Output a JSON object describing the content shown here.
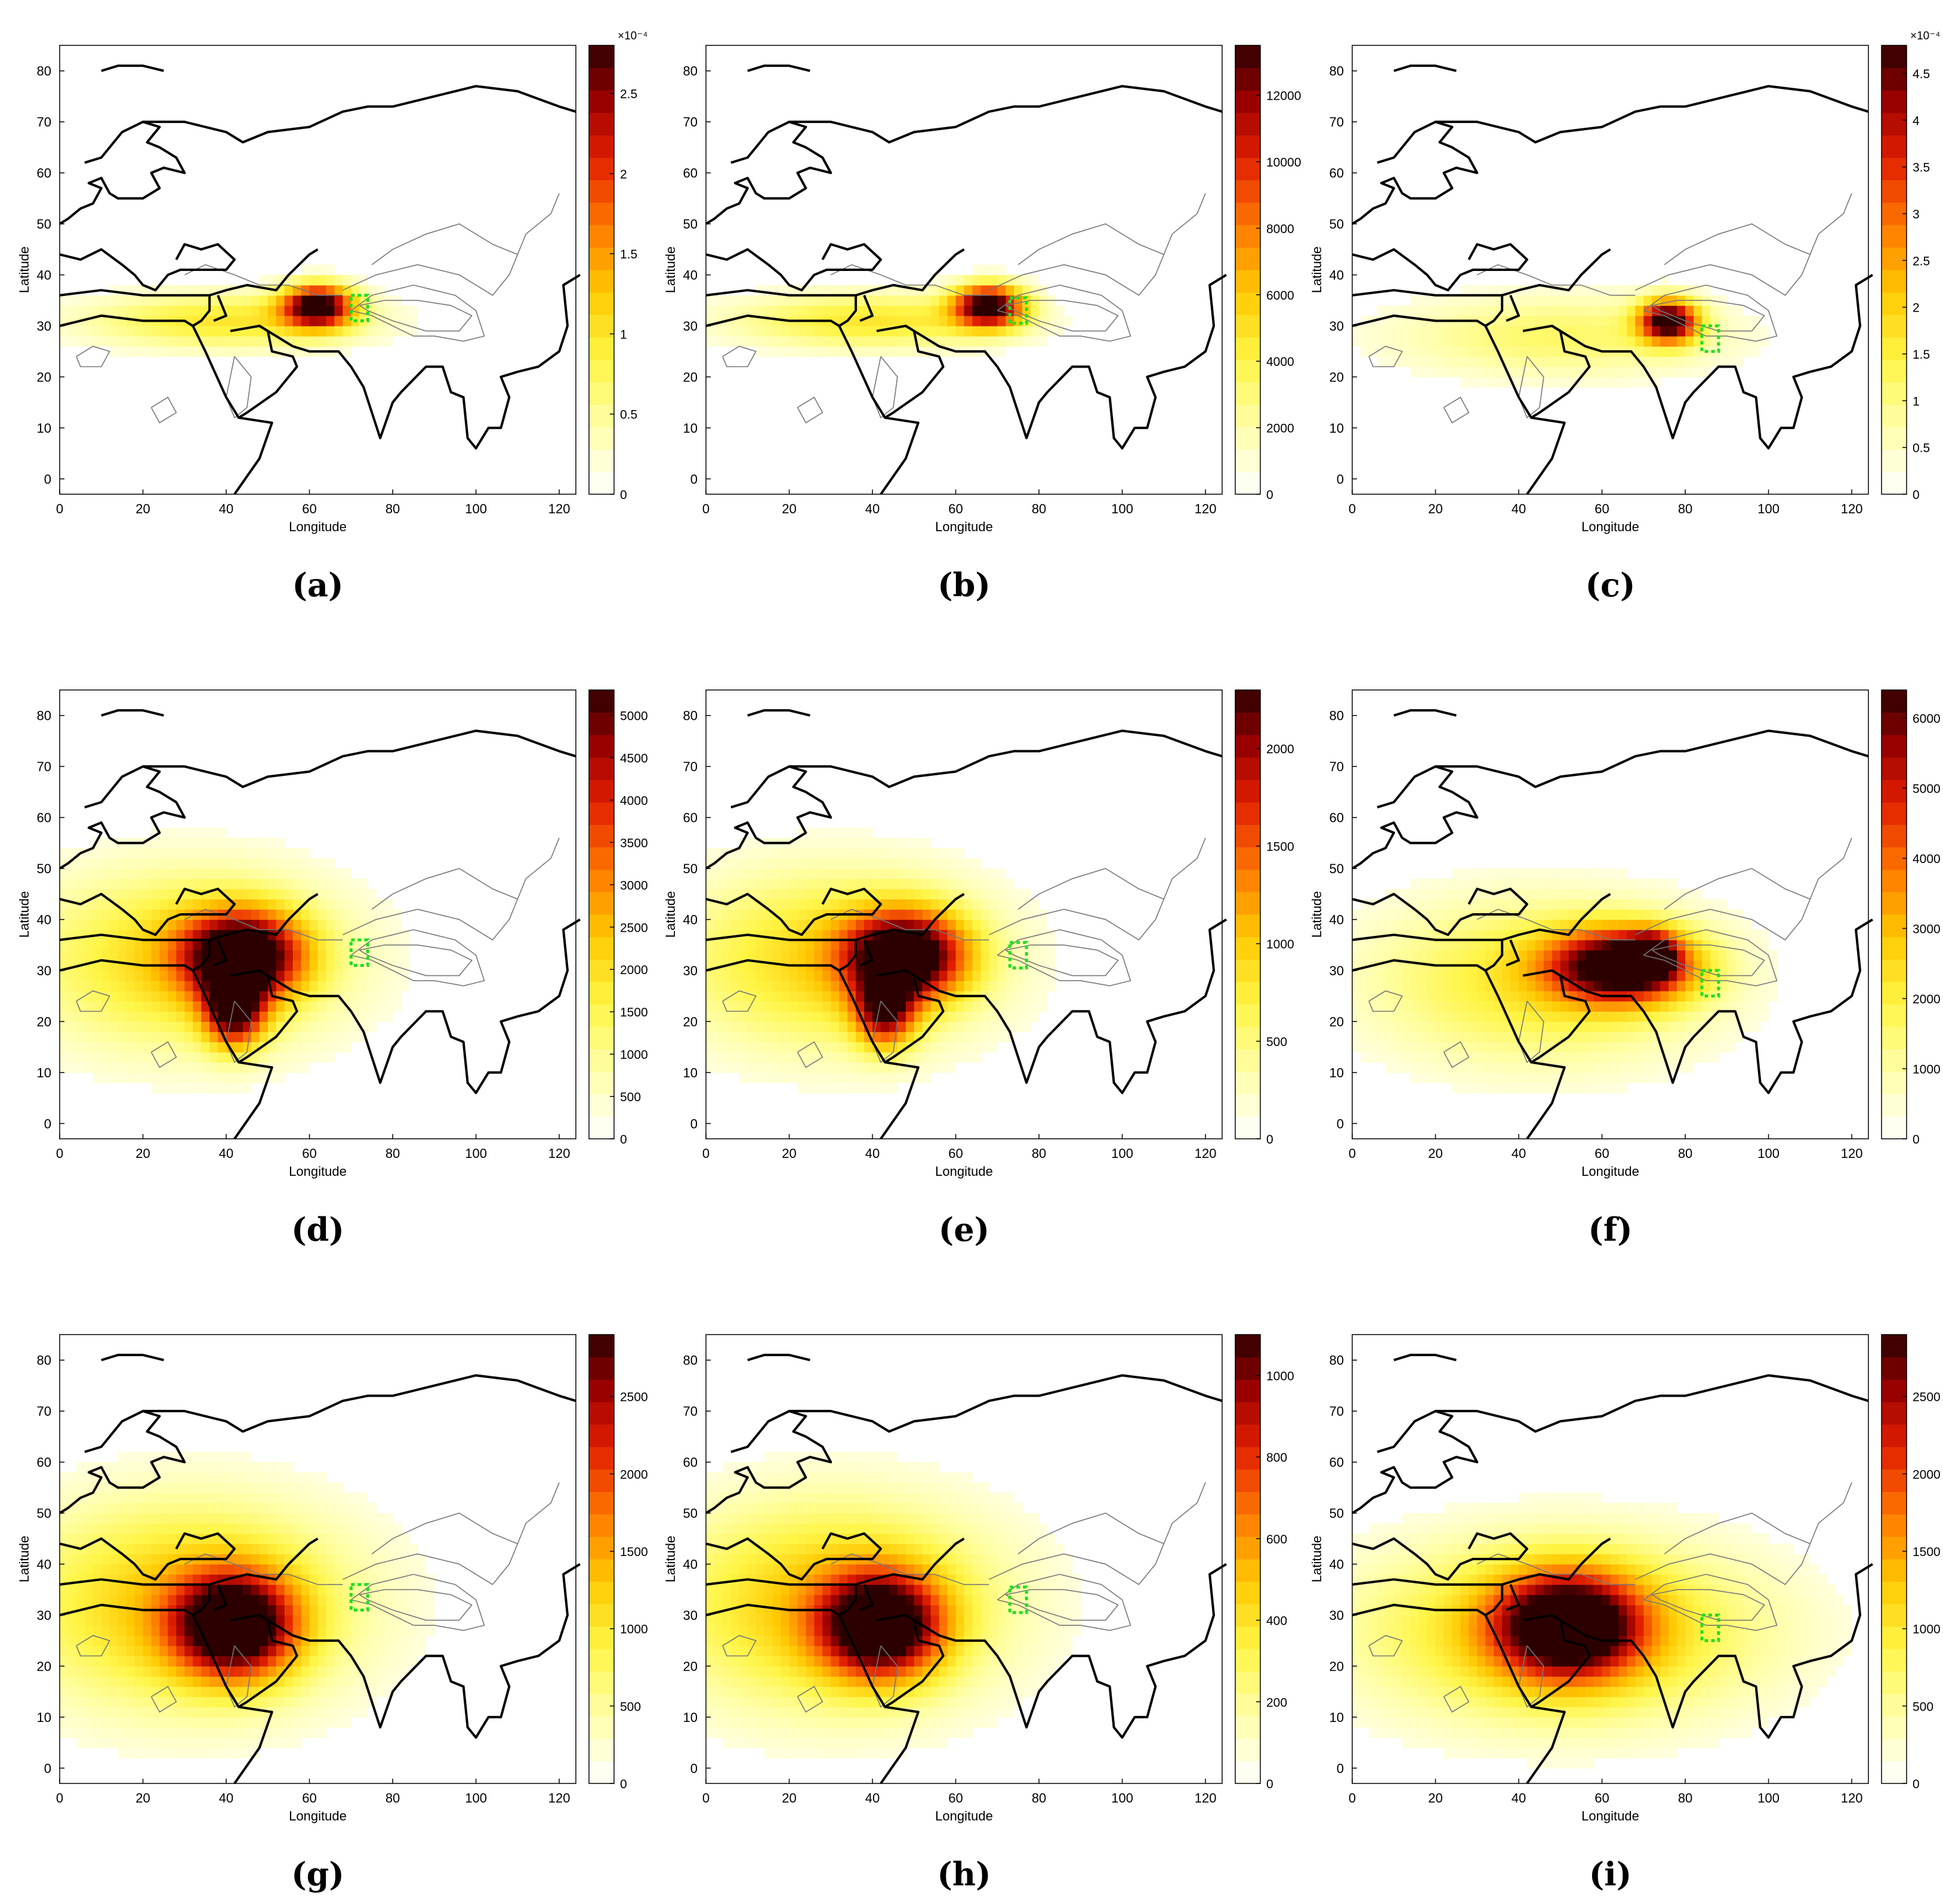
{
  "figure": {
    "panels": [
      {
        "label": "(a)",
        "xlabel": "Longitude",
        "ylabel": "Latitude",
        "xticks": [
          "0",
          "20",
          "40",
          "60",
          "80",
          "100",
          "120"
        ],
        "yticks": [
          "0",
          "10",
          "20",
          "30",
          "40",
          "50",
          "60",
          "70",
          "80"
        ],
        "colorbar": {
          "ticks": [
            "0",
            "0.5",
            "1",
            "1.5",
            "2",
            "2.5"
          ],
          "max_tick": 2.5,
          "vmax": 2.8,
          "exponent": "×10⁻⁴"
        },
        "source_box": {
          "lon": 72,
          "lat": 33.5
        },
        "blobs": [
          {
            "lon": 62,
            "lat": 34,
            "sx": 6,
            "sy": 3,
            "w": 1.0
          },
          {
            "lon": 40,
            "lat": 31,
            "sx": 25,
            "sy": 4,
            "w": 0.35
          }
        ]
      },
      {
        "label": "(b)",
        "xlabel": "Longitude",
        "ylabel": "Latitude",
        "xticks": [
          "0",
          "20",
          "40",
          "60",
          "80",
          "100",
          "120"
        ],
        "yticks": [
          "0",
          "10",
          "20",
          "30",
          "40",
          "50",
          "60",
          "70",
          "80"
        ],
        "colorbar": {
          "ticks": [
            "0",
            "2000",
            "4000",
            "6000",
            "8000",
            "10000",
            "12000"
          ],
          "max_tick": 12000,
          "vmax": 13500,
          "exponent": ""
        },
        "source_box": {
          "lon": 75,
          "lat": 33
        },
        "blobs": [
          {
            "lon": 68,
            "lat": 34,
            "sx": 6,
            "sy": 3,
            "w": 1.0
          },
          {
            "lon": 40,
            "lat": 31,
            "sx": 25,
            "sy": 4,
            "w": 0.35
          }
        ]
      },
      {
        "label": "(c)",
        "xlabel": "Longitude",
        "ylabel": "Latitude",
        "xticks": [
          "0",
          "20",
          "40",
          "60",
          "80",
          "100",
          "120"
        ],
        "yticks": [
          "0",
          "10",
          "20",
          "30",
          "40",
          "50",
          "60",
          "70",
          "80"
        ],
        "colorbar": {
          "ticks": [
            "0",
            "0.5",
            "1",
            "1.5",
            "2",
            "2.5",
            "3",
            "3.5",
            "4",
            "4.5"
          ],
          "max_tick": 4.5,
          "vmax": 4.8,
          "exponent": "×10⁻⁴"
        },
        "source_box": {
          "lon": 86,
          "lat": 27.5
        },
        "blobs": [
          {
            "lon": 76,
            "lat": 31,
            "sx": 5,
            "sy": 3,
            "w": 1.0
          },
          {
            "lon": 50,
            "lat": 28,
            "sx": 30,
            "sy": 6,
            "w": 0.25
          }
        ]
      },
      {
        "label": "(d)",
        "xlabel": "Longitude",
        "ylabel": "Latitude",
        "xticks": [
          "0",
          "20",
          "40",
          "60",
          "80",
          "100",
          "120"
        ],
        "yticks": [
          "0",
          "10",
          "20",
          "30",
          "40",
          "50",
          "60",
          "70",
          "80"
        ],
        "colorbar": {
          "ticks": [
            "0",
            "500",
            "1000",
            "1500",
            "2000",
            "2500",
            "3000",
            "3500",
            "4000",
            "4500",
            "5000"
          ],
          "max_tick": 5000,
          "vmax": 5300,
          "exponent": ""
        },
        "source_box": {
          "lon": 72,
          "lat": 33.5
        },
        "blobs": [
          {
            "lon": 44,
            "lat": 33,
            "sx": 10,
            "sy": 6,
            "w": 1.0
          },
          {
            "lon": 42,
            "lat": 22,
            "sx": 5,
            "sy": 5,
            "w": 0.8
          },
          {
            "lon": 30,
            "lat": 32,
            "sx": 28,
            "sy": 13,
            "w": 0.4
          }
        ]
      },
      {
        "label": "(e)",
        "xlabel": "Longitude",
        "ylabel": "Latitude",
        "xticks": [
          "0",
          "20",
          "40",
          "60",
          "80",
          "100",
          "120"
        ],
        "yticks": [
          "0",
          "10",
          "20",
          "30",
          "40",
          "50",
          "60",
          "70",
          "80"
        ],
        "colorbar": {
          "ticks": [
            "0",
            "500",
            "1000",
            "1500",
            "2000"
          ],
          "max_tick": 2000,
          "vmax": 2300,
          "exponent": ""
        },
        "source_box": {
          "lon": 75,
          "lat": 33
        },
        "blobs": [
          {
            "lon": 48,
            "lat": 33,
            "sx": 10,
            "sy": 6,
            "w": 1.0
          },
          {
            "lon": 43,
            "lat": 22,
            "sx": 5,
            "sy": 5,
            "w": 0.7
          },
          {
            "lon": 30,
            "lat": 32,
            "sx": 28,
            "sy": 13,
            "w": 0.4
          }
        ]
      },
      {
        "label": "(f)",
        "xlabel": "Longitude",
        "ylabel": "Latitude",
        "xticks": [
          "0",
          "20",
          "40",
          "60",
          "80",
          "100",
          "120"
        ],
        "yticks": [
          "0",
          "10",
          "20",
          "30",
          "40",
          "50",
          "60",
          "70",
          "80"
        ],
        "colorbar": {
          "ticks": [
            "0",
            "1000",
            "2000",
            "3000",
            "4000",
            "5000",
            "6000"
          ],
          "max_tick": 6000,
          "vmax": 6400,
          "exponent": ""
        },
        "source_box": {
          "lon": 86,
          "lat": 27.5
        },
        "blobs": [
          {
            "lon": 65,
            "lat": 31,
            "sx": 12,
            "sy": 5,
            "w": 1.0
          },
          {
            "lon": 72,
            "lat": 33,
            "sx": 4,
            "sy": 3,
            "w": 0.6
          },
          {
            "lon": 45,
            "lat": 28,
            "sx": 30,
            "sy": 12,
            "w": 0.35
          }
        ]
      },
      {
        "label": "(g)",
        "xlabel": "Longitude",
        "ylabel": "Latitude",
        "xticks": [
          "0",
          "20",
          "40",
          "60",
          "80",
          "100",
          "120"
        ],
        "yticks": [
          "0",
          "10",
          "20",
          "30",
          "40",
          "50",
          "60",
          "70",
          "80"
        ],
        "colorbar": {
          "ticks": [
            "0",
            "500",
            "1000",
            "1500",
            "2000",
            "2500"
          ],
          "max_tick": 2500,
          "vmax": 2900,
          "exponent": ""
        },
        "source_box": {
          "lon": 72,
          "lat": 33.5
        },
        "blobs": [
          {
            "lon": 42,
            "lat": 28,
            "sx": 10,
            "sy": 7,
            "w": 1.0
          },
          {
            "lon": 30,
            "lat": 32,
            "sx": 30,
            "sy": 15,
            "w": 0.45
          }
        ]
      },
      {
        "label": "(h)",
        "xlabel": "Longitude",
        "ylabel": "Latitude",
        "xticks": [
          "0",
          "20",
          "40",
          "60",
          "80",
          "100",
          "120"
        ],
        "yticks": [
          "0",
          "10",
          "20",
          "30",
          "40",
          "50",
          "60",
          "70",
          "80"
        ],
        "colorbar": {
          "ticks": [
            "0",
            "200",
            "400",
            "600",
            "800",
            "1000"
          ],
          "max_tick": 1000,
          "vmax": 1100,
          "exponent": ""
        },
        "source_box": {
          "lon": 75,
          "lat": 33
        },
        "blobs": [
          {
            "lon": 42,
            "lat": 28,
            "sx": 10,
            "sy": 7,
            "w": 1.0
          },
          {
            "lon": 30,
            "lat": 32,
            "sx": 30,
            "sy": 15,
            "w": 0.45
          }
        ]
      },
      {
        "label": "(i)",
        "xlabel": "Longitude",
        "ylabel": "Latitude",
        "xticks": [
          "0",
          "20",
          "40",
          "60",
          "80",
          "100",
          "120"
        ],
        "yticks": [
          "0",
          "10",
          "20",
          "30",
          "40",
          "50",
          "60",
          "70",
          "80"
        ],
        "colorbar": {
          "ticks": [
            "0",
            "500",
            "1000",
            "1500",
            "2000",
            "2500"
          ],
          "max_tick": 2500,
          "vmax": 2900,
          "exponent": ""
        },
        "source_box": {
          "lon": 86,
          "lat": 27.5
        },
        "blobs": [
          {
            "lon": 52,
            "lat": 28,
            "sx": 12,
            "sy": 7,
            "w": 1.0
          },
          {
            "lon": 50,
            "lat": 27,
            "sx": 35,
            "sy": 13,
            "w": 0.45
          }
        ]
      }
    ]
  }
}
